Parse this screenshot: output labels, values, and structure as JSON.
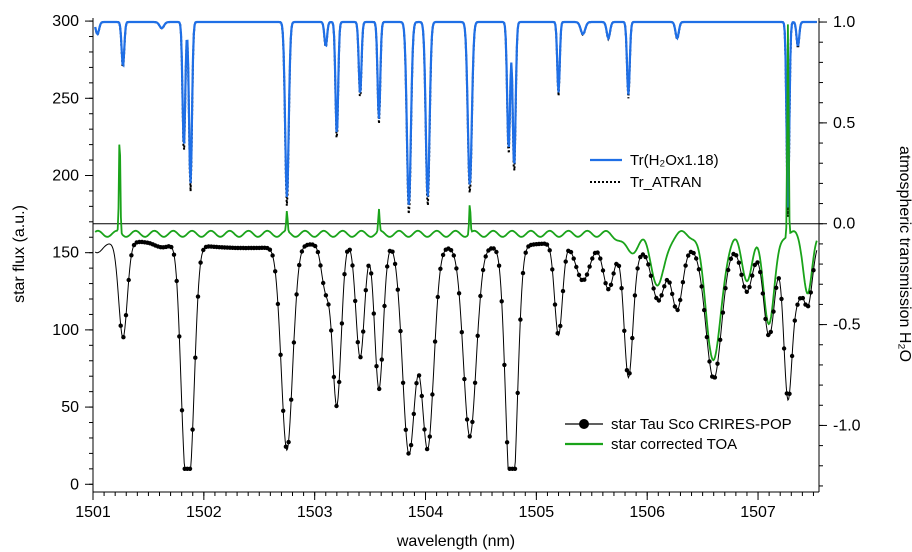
{
  "colors": {
    "blue": "#1f6fe6",
    "green": "#1aa31a",
    "black": "#000000",
    "axis": "#000000"
  },
  "chart_data": {
    "type": "line",
    "xlabel": "wavelength (nm)",
    "ylabel_left": "star flux (a.u.)",
    "ylabel_right": "atmospheric transmission H₂O",
    "xlim": [
      1501.0,
      1507.55
    ],
    "ylim_left": [
      -5,
      302
    ],
    "ylim_right": [
      -1.33,
      1.02
    ],
    "x_ticks": [
      1501,
      1502,
      1503,
      1504,
      1505,
      1506,
      1507
    ],
    "x_tick_labels": [
      "1501",
      "1502",
      "1503",
      "1504",
      "1505",
      "1506",
      "1507"
    ],
    "y_left_ticks": [
      0,
      50,
      100,
      150,
      200,
      250,
      300
    ],
    "y_left_tick_labels": [
      "0",
      "50",
      "100",
      "150",
      "200",
      "250",
      "300"
    ],
    "y_right_ticks": [
      1.0,
      0.5,
      0.0,
      -0.5,
      -1.0
    ],
    "y_right_tick_labels": [
      "1.0",
      "0.5",
      "0.0",
      "-0.5",
      "-1.0"
    ],
    "zero_line_right": 0.0,
    "legend_upper": [
      {
        "name": "Tr(H₂Ox1.18)",
        "style": "solid",
        "color": "#1f6fe6"
      },
      {
        "name": "Tr_ATRAN",
        "style": "dotted",
        "color": "#000000"
      }
    ],
    "legend_lower": [
      {
        "name": "star Tau Sco CRIRES-POP",
        "style": "line-marker",
        "color": "#000000"
      },
      {
        "name": "star corrected TOA",
        "style": "solid",
        "color": "#1aa31a"
      }
    ],
    "absorption_lines": [
      {
        "x": 1501.04,
        "depth_tr": 0.06,
        "depth_star": 6,
        "width": 0.015
      },
      {
        "x": 1501.27,
        "depth_tr": 0.22,
        "depth_star": 62,
        "width": 0.012
      },
      {
        "x": 1501.62,
        "depth_tr": 0.03,
        "depth_star": 3,
        "width": 0.02
      },
      {
        "x": 1501.82,
        "depth_tr": 0.62,
        "depth_star": 95,
        "width": 0.012
      },
      {
        "x": 1501.88,
        "depth_tr": 0.8,
        "depth_star": 120,
        "width": 0.013
      },
      {
        "x": 1502.75,
        "depth_tr": 0.87,
        "depth_star": 132,
        "width": 0.016
      },
      {
        "x": 1503.1,
        "depth_tr": 0.12,
        "depth_star": 30,
        "width": 0.012
      },
      {
        "x": 1503.2,
        "depth_tr": 0.56,
        "depth_star": 105,
        "width": 0.012
      },
      {
        "x": 1503.41,
        "depth_tr": 0.36,
        "depth_star": 75,
        "width": 0.012
      },
      {
        "x": 1503.58,
        "depth_tr": 0.48,
        "depth_star": 95,
        "width": 0.012
      },
      {
        "x": 1503.85,
        "depth_tr": 0.91,
        "depth_star": 135,
        "width": 0.018
      },
      {
        "x": 1504.02,
        "depth_tr": 0.87,
        "depth_star": 130,
        "width": 0.017
      },
      {
        "x": 1504.4,
        "depth_tr": 0.81,
        "depth_star": 122,
        "width": 0.018
      },
      {
        "x": 1504.75,
        "depth_tr": 0.63,
        "depth_star": 100,
        "width": 0.013
      },
      {
        "x": 1504.8,
        "depth_tr": 0.72,
        "depth_star": 108,
        "width": 0.013
      },
      {
        "x": 1505.2,
        "depth_tr": 0.35,
        "depth_star": 60,
        "width": 0.011
      },
      {
        "x": 1505.42,
        "depth_tr": 0.06,
        "depth_star": 25,
        "width": 0.02
      },
      {
        "x": 1505.65,
        "depth_tr": 0.08,
        "depth_star": 30,
        "width": 0.015
      },
      {
        "x": 1505.83,
        "depth_tr": 0.36,
        "depth_star": 75,
        "width": 0.012
      },
      {
        "x": 1506.27,
        "depth_tr": 0.08,
        "depth_star": 40,
        "width": 0.015
      },
      {
        "x": 1507.27,
        "depth_tr": 0.92,
        "depth_star": 100,
        "width": 0.012
      },
      {
        "x": 1507.36,
        "depth_tr": 0.12,
        "depth_star": 30,
        "width": 0.012
      }
    ],
    "stellar_bands": [
      {
        "x": 1505.85,
        "depth": 12,
        "width": 0.07
      },
      {
        "x": 1506.1,
        "depth": 35,
        "width": 0.06
      },
      {
        "x": 1506.6,
        "depth": 85,
        "width": 0.07
      },
      {
        "x": 1506.9,
        "depth": 30,
        "width": 0.05
      },
      {
        "x": 1507.1,
        "depth": 60,
        "width": 0.05
      },
      {
        "x": 1507.45,
        "depth": 40,
        "width": 0.04
      }
    ],
    "continuum_left": 155,
    "toa_offset_right": -0.05,
    "toa_features": [
      {
        "x": 1501.24,
        "value": 0.44
      },
      {
        "x": 1502.75,
        "value": 0.05
      },
      {
        "x": 1503.58,
        "value": 0.06
      },
      {
        "x": 1504.4,
        "value": 0.1
      },
      {
        "x": 1507.27,
        "value": 1.0
      }
    ]
  }
}
